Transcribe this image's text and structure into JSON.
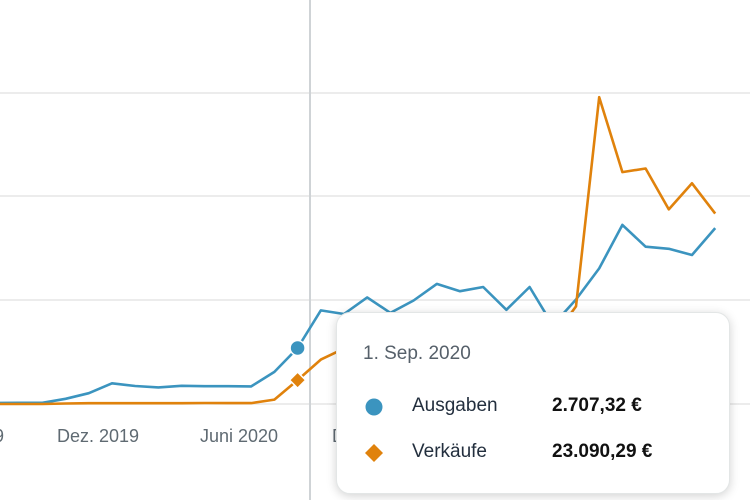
{
  "chart_data": {
    "type": "line",
    "x_tick_labels": [
      "9",
      "Dez. 2019",
      "Juni 2020",
      "D"
    ],
    "series": [
      {
        "name": "Ausgaben",
        "color": "#3b94bf",
        "marker": "circle",
        "values": [
          50,
          60,
          60,
          250,
          520,
          1000,
          870,
          800,
          880,
          860,
          860,
          850,
          1550,
          2707,
          4520,
          4350,
          5150,
          4400,
          5000,
          5800,
          5450,
          5650,
          4550,
          5650,
          3800,
          5050,
          6550,
          8650,
          7600,
          7500,
          7200,
          8500
        ]
      },
      {
        "name": "Verkäufe",
        "color": "#e0820c",
        "marker": "diamond",
        "values": [
          0,
          0,
          20,
          510,
          800,
          800,
          780,
          780,
          790,
          920,
          880,
          860,
          4240,
          23090,
          42860,
          53480,
          73100,
          61000,
          66000,
          76600,
          65200,
          68400,
          63600,
          74600,
          63600,
          94300,
          296400,
          224100,
          227500,
          188000,
          213200,
          184000
        ]
      }
    ],
    "tooltip": {
      "date": "1. Sep. 2020",
      "rows": [
        {
          "name": "Ausgaben",
          "value": "2.707,32 €",
          "color": "#3b94bf",
          "marker": "circle"
        },
        {
          "name": "Verkäufe",
          "value": "23.090,29 €",
          "color": "#e0820c",
          "marker": "diamond"
        }
      ]
    }
  }
}
